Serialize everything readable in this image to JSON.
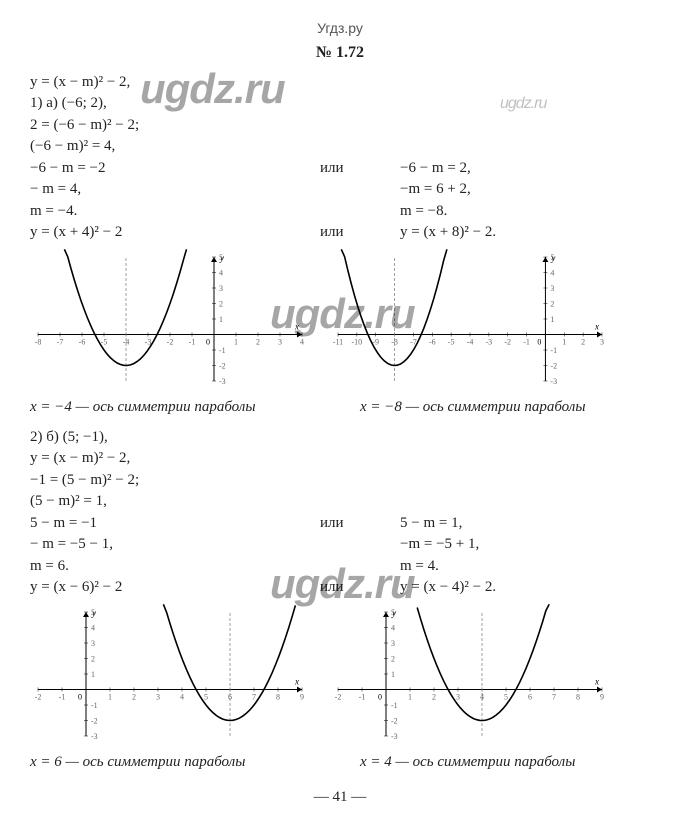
{
  "site": "Угдз.ру",
  "title": "№ 1.72",
  "wm_main": "ugdz.ru",
  "wm_side": "ugdz.ru",
  "page_number": "— 41 —",
  "section1": {
    "header_eq": "y = (x − m)² − 2,",
    "point_line": "1) а) (−6; 2),",
    "subst": "2 = (−6 − m)² − 2;",
    "step1": "(−6 − m)² = 4,",
    "left": {
      "l1": "−6 − m = −2",
      "l2": "− m = 4,",
      "l3": "m = −4.",
      "result": "y = (x + 4)² − 2"
    },
    "right": {
      "l1": "−6 − m = 2,",
      "l2": "−m = 6 + 2,",
      "l3": "m = −8.",
      "result": "y = (x + 8)² − 2."
    },
    "or_word": "или",
    "caption_left": "x = −4 — ось симметрии параболы",
    "caption_right": "x = −8 — ось симметрии параболы",
    "chart_left": {
      "vertex_x": -4,
      "vertex_y": -2,
      "xlim": [
        -8,
        4
      ],
      "ylim": [
        -3,
        5
      ],
      "axis_of_symmetry": -4,
      "curve_color": "#000000",
      "axis_color": "#000000",
      "grid_color": "#dddddd",
      "dash_color": "#888888",
      "tick_font": 8
    },
    "chart_right": {
      "vertex_x": -8,
      "vertex_y": -2,
      "xlim": [
        -11,
        3
      ],
      "ylim": [
        -3,
        5
      ],
      "axis_of_symmetry": -8,
      "curve_color": "#000000",
      "axis_color": "#000000",
      "grid_color": "#dddddd",
      "dash_color": "#888888",
      "tick_font": 8
    }
  },
  "section2": {
    "point_line": "2) б) (5; −1),",
    "header_eq": "y = (x − m)² − 2,",
    "subst": "−1 = (5 − m)² − 2;",
    "step1": "(5 − m)² = 1,",
    "left": {
      "l1": "5 − m = −1",
      "l2": "− m = −5 − 1,",
      "l3": "m = 6.",
      "result": "y = (x − 6)² − 2"
    },
    "right": {
      "l1": "5 − m = 1,",
      "l2": "−m = −5 + 1,",
      "l3": "m = 4.",
      "result": "y = (x − 4)² − 2."
    },
    "or_word": "или",
    "caption_left": "x = 6 — ось симметрии параболы",
    "caption_right": "x = 4 — ось симметрии параболы",
    "chart_left": {
      "vertex_x": 6,
      "vertex_y": -2,
      "xlim": [
        -2,
        9
      ],
      "ylim": [
        -3,
        5
      ],
      "axis_of_symmetry": 6,
      "curve_color": "#000000",
      "axis_color": "#000000",
      "grid_color": "#dddddd",
      "dash_color": "#888888",
      "tick_font": 8
    },
    "chart_right": {
      "vertex_x": 4,
      "vertex_y": -2,
      "xlim": [
        -2,
        9
      ],
      "ylim": [
        -3,
        5
      ],
      "axis_of_symmetry": 4,
      "curve_color": "#000000",
      "axis_color": "#000000",
      "grid_color": "#dddddd",
      "dash_color": "#888888",
      "tick_font": 8
    }
  }
}
